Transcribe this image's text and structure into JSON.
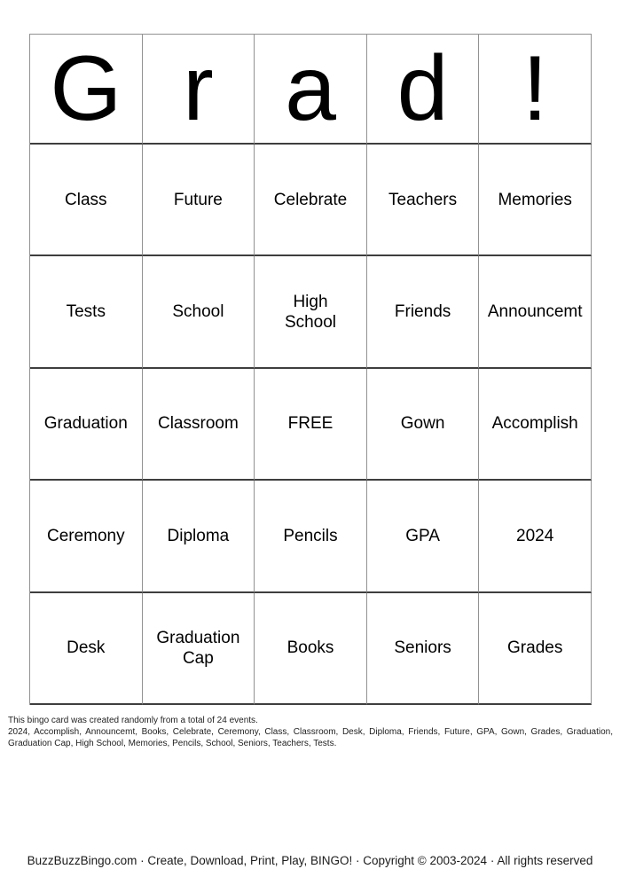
{
  "card": {
    "title_letters": [
      "G",
      "r",
      "a",
      "d",
      "!"
    ],
    "free_cell": "FREE",
    "rows": [
      [
        "Class",
        "Future",
        "Celebrate",
        "Teachers",
        "Memories"
      ],
      [
        "Tests",
        "School",
        "High\nSchool",
        "Friends",
        "Announcemt"
      ],
      [
        "Graduation",
        "Classroom",
        "FREE",
        "Gown",
        "Accomplish"
      ],
      [
        "Ceremony",
        "Diploma",
        "Pencils",
        "GPA",
        "2024"
      ],
      [
        "Desk",
        "Graduation\nCap",
        "Books",
        "Seniors",
        "Grades"
      ]
    ]
  },
  "info": {
    "summary": "This bingo card was created randomly from a total of 24 events.",
    "events_list": "2024, Accomplish, Announcemt, Books, Celebrate, Ceremony, Class, Classroom, Desk, Diploma, Friends, Future, GPA, Gown, Grades, Graduation, Graduation Cap, High School, Memories, Pencils, School, Seniors, Teachers, Tests."
  },
  "footer": {
    "site": "BuzzBuzzBingo.com",
    "separator": " · ",
    "tagline": "Create, Download, Print, Play, BINGO!",
    "copyright": "Copyright © 2003-2024",
    "rights": "All rights reserved"
  },
  "colors": {
    "background": "#ffffff",
    "text": "#000000",
    "grid_line_vertical": "#929292",
    "grid_line_horizontal": "#3e3e3e"
  }
}
